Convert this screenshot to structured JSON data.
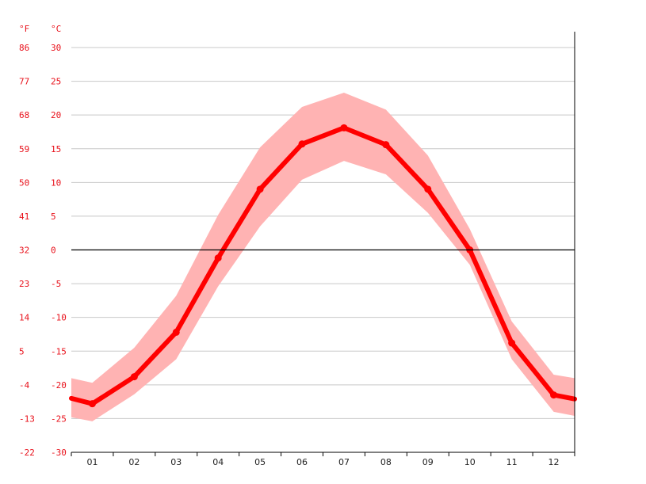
{
  "colors": {
    "line": "#ff0000",
    "band": "#ffb3b3",
    "grid": "#c8c8c8",
    "zero": "#000000",
    "axis_text": "#e8101a",
    "x_text": "#222222"
  },
  "chart_data": {
    "type": "line",
    "title": "",
    "xlabel": "",
    "ylabel": "",
    "unit_f": "°F",
    "unit_c": "°C",
    "categories": [
      "01",
      "02",
      "03",
      "04",
      "05",
      "06",
      "07",
      "08",
      "09",
      "10",
      "11",
      "12"
    ],
    "ylim": [
      -30,
      30
    ],
    "y_ticks_c": [
      "30",
      "25",
      "20",
      "15",
      "10",
      "5",
      "0",
      "-5",
      "-10",
      "-15",
      "-20",
      "-25",
      "-30"
    ],
    "y_ticks_f": [
      "86",
      "77",
      "68",
      "59",
      "50",
      "41",
      "32",
      "23",
      "14",
      "5",
      "-4",
      "-13",
      "-22"
    ],
    "series": [
      {
        "values": [
          -22.8,
          -18.8,
          -12.2,
          -1.2,
          9.0,
          15.7,
          18.1,
          15.6,
          9.0,
          0.0,
          -13.8,
          -21.5
        ]
      },
      {
        "values": [
          -19.7,
          -14.5,
          -6.8,
          5.2,
          15.2,
          21.2,
          23.3,
          20.8,
          14.0,
          3.1,
          -10.6,
          -18.5
        ]
      },
      {
        "values": [
          -25.4,
          -21.4,
          -16.2,
          -5.4,
          3.5,
          10.4,
          13.2,
          11.2,
          5.5,
          -2.2,
          -16.2,
          -24.0
        ]
      }
    ],
    "edge_values": {
      "start": -22.0,
      "end": -22.1,
      "start_max": -19.0,
      "end_max": -19.0,
      "start_min": -24.8,
      "end_min": -24.6
    },
    "grid": true
  }
}
